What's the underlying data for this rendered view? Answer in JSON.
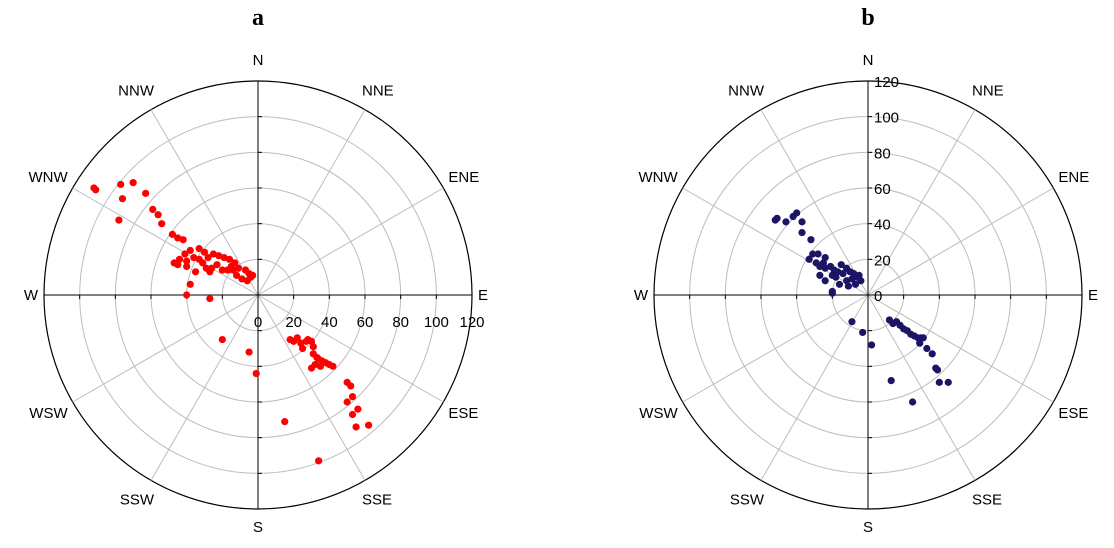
{
  "chart_data": [
    {
      "type": "scatter",
      "coordinate_system": "polar",
      "panel_label": "a",
      "r_range": [
        0,
        120
      ],
      "r_ticks": [
        0,
        20,
        40,
        60,
        80,
        100,
        120
      ],
      "r_tick_labels": [
        "0",
        "20",
        "40",
        "60",
        "80",
        "100",
        "120"
      ],
      "r_label_direction": "E",
      "directions": [
        "N",
        "NNE",
        "ENE",
        "E",
        "ESE",
        "SSE",
        "S",
        "SSW",
        "WSW",
        "W",
        "WNW",
        "NNW"
      ],
      "grid": true,
      "point_color": "#ff0000",
      "x_label": "",
      "y_label": "",
      "points": [
        {
          "x": -92,
          "y": 60
        },
        {
          "x": -91,
          "y": 59
        },
        {
          "x": -77,
          "y": 62
        },
        {
          "x": -70,
          "y": 63
        },
        {
          "x": -76,
          "y": 54
        },
        {
          "x": -63,
          "y": 57
        },
        {
          "x": -59,
          "y": 48
        },
        {
          "x": -56,
          "y": 45
        },
        {
          "x": -54,
          "y": 40
        },
        {
          "x": -78,
          "y": 42
        },
        {
          "x": -48,
          "y": 34
        },
        {
          "x": -45,
          "y": 32
        },
        {
          "x": -42,
          "y": 31
        },
        {
          "x": -38,
          "y": 25
        },
        {
          "x": -33,
          "y": 26
        },
        {
          "x": -30,
          "y": 24
        },
        {
          "x": -28,
          "y": 21
        },
        {
          "x": -25,
          "y": 23
        },
        {
          "x": -22,
          "y": 22
        },
        {
          "x": -19,
          "y": 21
        },
        {
          "x": -16,
          "y": 20
        },
        {
          "x": -13,
          "y": 18
        },
        {
          "x": -40,
          "y": 19
        },
        {
          "x": -44,
          "y": 20
        },
        {
          "x": -36,
          "y": 21
        },
        {
          "x": -31,
          "y": 18
        },
        {
          "x": -23,
          "y": 17
        },
        {
          "x": -26,
          "y": 15
        },
        {
          "x": -35,
          "y": 13
        },
        {
          "x": -40,
          "y": 16
        },
        {
          "x": -45,
          "y": 17
        },
        {
          "x": -47,
          "y": 18
        },
        {
          "x": -41,
          "y": 23
        },
        {
          "x": -33,
          "y": 20
        },
        {
          "x": -20,
          "y": 14
        },
        {
          "x": -14,
          "y": 14
        },
        {
          "x": -11,
          "y": 15
        },
        {
          "x": -7,
          "y": 14
        },
        {
          "x": -5,
          "y": 12
        },
        {
          "x": -3,
          "y": 11
        },
        {
          "x": -17,
          "y": 14
        },
        {
          "x": -12,
          "y": 11
        },
        {
          "x": -9,
          "y": 9
        },
        {
          "x": -6,
          "y": 8
        },
        {
          "x": -4,
          "y": 10
        },
        {
          "x": -15,
          "y": 16
        },
        {
          "x": -29,
          "y": 15
        },
        {
          "x": -27,
          "y": 13
        },
        {
          "x": -38,
          "y": 6
        },
        {
          "x": -40,
          "y": 0
        },
        {
          "x": -27,
          "y": -2
        },
        {
          "x": -20,
          "y": -25
        },
        {
          "x": -5,
          "y": -32
        },
        {
          "x": -1,
          "y": -44
        },
        {
          "x": 18,
          "y": -25
        },
        {
          "x": 20,
          "y": -26
        },
        {
          "x": 22,
          "y": -24
        },
        {
          "x": 24,
          "y": -27
        },
        {
          "x": 27,
          "y": -26
        },
        {
          "x": 28,
          "y": -25
        },
        {
          "x": 30,
          "y": -26
        },
        {
          "x": 31,
          "y": -29
        },
        {
          "x": 25,
          "y": -30
        },
        {
          "x": 31,
          "y": -33
        },
        {
          "x": 33,
          "y": -35
        },
        {
          "x": 34,
          "y": -36
        },
        {
          "x": 36,
          "y": -37
        },
        {
          "x": 38,
          "y": -38
        },
        {
          "x": 40,
          "y": -39
        },
        {
          "x": 42,
          "y": -40
        },
        {
          "x": 32,
          "y": -39
        },
        {
          "x": 30,
          "y": -41
        },
        {
          "x": 35,
          "y": -40
        },
        {
          "x": 50,
          "y": -49
        },
        {
          "x": 52,
          "y": -51
        },
        {
          "x": 53,
          "y": -57
        },
        {
          "x": 50,
          "y": -60
        },
        {
          "x": 53,
          "y": -67
        },
        {
          "x": 56,
          "y": -64
        },
        {
          "x": 55,
          "y": -74
        },
        {
          "x": 62,
          "y": -73
        },
        {
          "x": 15,
          "y": -71
        },
        {
          "x": 34,
          "y": -93
        }
      ]
    },
    {
      "type": "scatter",
      "coordinate_system": "polar",
      "panel_label": "b",
      "r_range": [
        0,
        120
      ],
      "r_ticks": [
        0,
        20,
        40,
        60,
        80,
        100,
        120
      ],
      "r_tick_labels": [
        "0",
        "20",
        "40",
        "60",
        "80",
        "100",
        "120"
      ],
      "r_label_direction": "N",
      "directions": [
        "N",
        "NNE",
        "ENE",
        "E",
        "ESE",
        "SSE",
        "S",
        "SSW",
        "WSW",
        "W",
        "WNW",
        "NNW"
      ],
      "grid": true,
      "point_color": "#1c1464",
      "x_label": "",
      "y_label": "",
      "points": [
        {
          "x": -51,
          "y": 43
        },
        {
          "x": -52,
          "y": 42
        },
        {
          "x": -46,
          "y": 41
        },
        {
          "x": -42,
          "y": 44
        },
        {
          "x": -40,
          "y": 46
        },
        {
          "x": -37,
          "y": 41
        },
        {
          "x": -37,
          "y": 35
        },
        {
          "x": -32,
          "y": 31
        },
        {
          "x": -31,
          "y": 23
        },
        {
          "x": -28,
          "y": 23
        },
        {
          "x": -33,
          "y": 20
        },
        {
          "x": -29,
          "y": 18
        },
        {
          "x": -27,
          "y": 16
        },
        {
          "x": -24,
          "y": 15
        },
        {
          "x": -21,
          "y": 16
        },
        {
          "x": -19,
          "y": 14
        },
        {
          "x": -15,
          "y": 17
        },
        {
          "x": -12,
          "y": 15
        },
        {
          "x": -10,
          "y": 13
        },
        {
          "x": -8,
          "y": 12
        },
        {
          "x": -6,
          "y": 10
        },
        {
          "x": -4,
          "y": 8
        },
        {
          "x": -24,
          "y": 21
        },
        {
          "x": -27,
          "y": 11
        },
        {
          "x": -24,
          "y": 8
        },
        {
          "x": -18,
          "y": 10
        },
        {
          "x": -16,
          "y": 6
        },
        {
          "x": -12,
          "y": 8
        },
        {
          "x": -9,
          "y": 9
        },
        {
          "x": -7,
          "y": 6
        },
        {
          "x": -5,
          "y": 11
        },
        {
          "x": -14,
          "y": 12
        },
        {
          "x": -20,
          "y": 11
        },
        {
          "x": -11,
          "y": 5
        },
        {
          "x": -25,
          "y": 18
        },
        {
          "x": -17,
          "y": 13
        },
        {
          "x": -20,
          "y": 2
        },
        {
          "x": -20,
          "y": 1
        },
        {
          "x": -9,
          "y": -15
        },
        {
          "x": -3,
          "y": -21
        },
        {
          "x": 2,
          "y": -28
        },
        {
          "x": 12,
          "y": -14
        },
        {
          "x": 14,
          "y": -16
        },
        {
          "x": 16,
          "y": -15
        },
        {
          "x": 18,
          "y": -17
        },
        {
          "x": 20,
          "y": -19
        },
        {
          "x": 22,
          "y": -20
        },
        {
          "x": 24,
          "y": -22
        },
        {
          "x": 26,
          "y": -23
        },
        {
          "x": 28,
          "y": -24
        },
        {
          "x": 30,
          "y": -24
        },
        {
          "x": 31,
          "y": -24
        },
        {
          "x": 29,
          "y": -27
        },
        {
          "x": 33,
          "y": -30
        },
        {
          "x": 36,
          "y": -33
        },
        {
          "x": 38,
          "y": -41
        },
        {
          "x": 39,
          "y": -42
        },
        {
          "x": 40,
          "y": -49
        },
        {
          "x": 45,
          "y": -49
        },
        {
          "x": 13,
          "y": -48
        },
        {
          "x": 25,
          "y": -60
        }
      ]
    }
  ]
}
